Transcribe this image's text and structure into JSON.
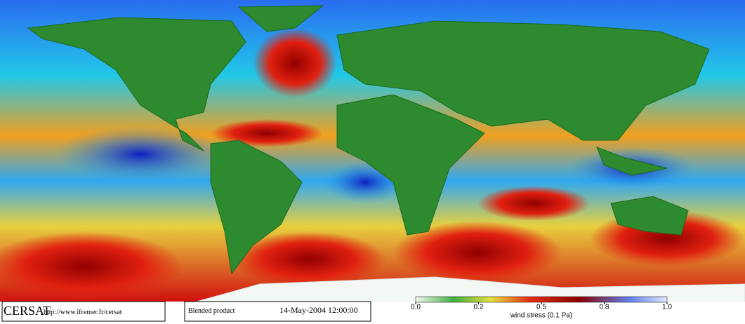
{
  "footer": {
    "logo": "CERSAT",
    "url": "http://www.ifremer.fr/cersat",
    "product": "Blended product",
    "timestamp": "14-May-2004 12:00:00"
  },
  "colorbar": {
    "ticks": [
      {
        "value": 0.0,
        "label": "0.0"
      },
      0.2,
      0.5,
      0.8,
      {
        "value": 1.0,
        "label": "1.0"
      }
    ],
    "label": "wind stress (0.1 Pa)"
  }
}
